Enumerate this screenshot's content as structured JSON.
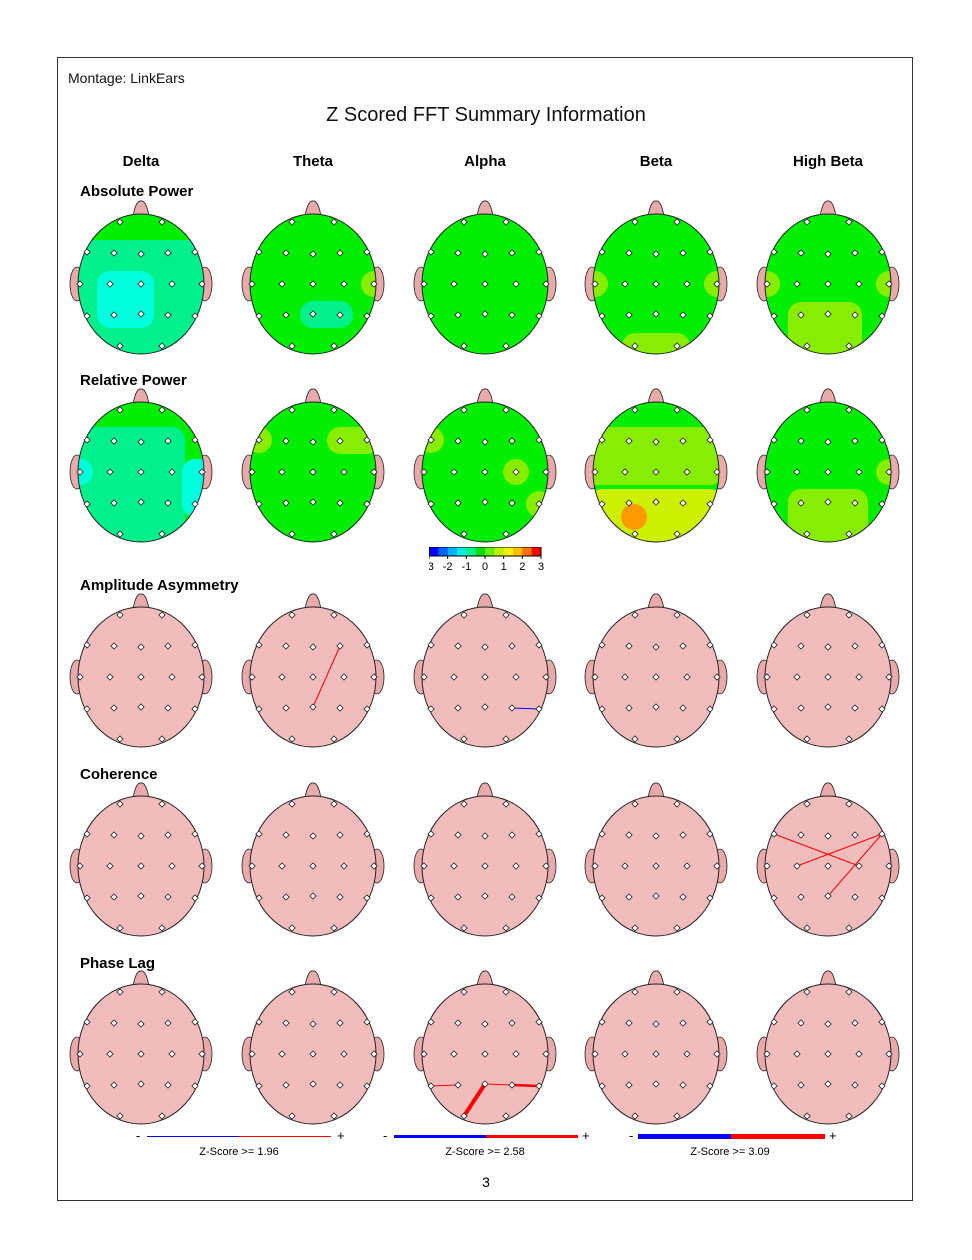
{
  "montage_label": "Montage:  LinkEars",
  "title": "Z Scored FFT Summary Information",
  "columns": [
    "Delta",
    "Theta",
    "Alpha",
    "Beta",
    "High Beta"
  ],
  "rows": [
    "Absolute Power",
    "Relative Power",
    "Amplitude Asymmetry",
    "Coherence",
    "Phase Lag"
  ],
  "colors": {
    "head_fill": "#f2bcbc",
    "ear_fill": "#e8aaaa",
    "z0": "#00ee00",
    "zneg1": "#00f08c",
    "zneg15": "#00ffdd",
    "zpos1": "#88ee00",
    "zpos15": "#ccf000",
    "zpos2": "#ff9900",
    "positive_line": "#ff0000",
    "negative_line": "#0000ff"
  },
  "power_maps": [
    [
      {
        "base": "z0",
        "regions": [
          {
            "electrodes": [
              "F3",
              "Fz",
              "F4",
              "T3",
              "C3",
              "Cz",
              "C4",
              "T4",
              "T5",
              "P3",
              "Pz",
              "P4",
              "T6",
              "O1",
              "O2"
            ],
            "color": "zneg1"
          },
          {
            "electrodes": [
              "C3",
              "Cz",
              "P3",
              "Pz"
            ],
            "color": "zneg15"
          }
        ]
      },
      {
        "base": "z0",
        "regions": [
          {
            "electrodes": [
              "Pz",
              "P4"
            ],
            "color": "zneg1"
          },
          {
            "electrodes": [
              "T4"
            ],
            "color": "zpos1"
          }
        ]
      },
      {
        "base": "z0",
        "regions": []
      },
      {
        "base": "z0",
        "regions": [
          {
            "electrodes": [
              "T3"
            ],
            "color": "zpos1"
          },
          {
            "electrodes": [
              "T4"
            ],
            "color": "zpos1"
          },
          {
            "electrodes": [
              "O1",
              "O2"
            ],
            "color": "zpos1"
          }
        ]
      },
      {
        "base": "z0",
        "regions": [
          {
            "electrodes": [
              "T3"
            ],
            "color": "zpos1"
          },
          {
            "electrodes": [
              "T4"
            ],
            "color": "zpos1"
          },
          {
            "electrodes": [
              "O1",
              "O2",
              "P3"
            ],
            "color": "zpos1"
          }
        ]
      }
    ],
    [
      {
        "base": "z0",
        "regions": [
          {
            "electrodes": [
              "T3",
              "C3",
              "Cz",
              "T5",
              "P3",
              "Pz",
              "O1",
              "O2",
              "F7",
              "C4",
              "P4"
            ],
            "color": "zneg1"
          },
          {
            "electrodes": [
              "T3"
            ],
            "color": "zneg15"
          },
          {
            "electrodes": [
              "T6",
              "T4"
            ],
            "color": "zneg15"
          }
        ]
      },
      {
        "base": "z0",
        "regions": [
          {
            "electrodes": [
              "F4",
              "F8"
            ],
            "color": "zpos1"
          },
          {
            "electrodes": [
              "F7"
            ],
            "color": "zpos1"
          }
        ]
      },
      {
        "base": "z0",
        "regions": [
          {
            "electrodes": [
              "F7"
            ],
            "color": "zpos1"
          },
          {
            "electrodes": [
              "C4"
            ],
            "color": "zpos1"
          },
          {
            "electrodes": [
              "T6"
            ],
            "color": "zpos1"
          }
        ]
      },
      {
        "base": "z0",
        "regions": [
          {
            "electrodes": [
              "T3",
              "C3",
              "Cz",
              "C4",
              "F4",
              "F8"
            ],
            "color": "zpos1"
          },
          {
            "electrodes": [
              "T5",
              "P3",
              "Pz",
              "P4",
              "O1",
              "O2",
              "T6"
            ],
            "color": "zpos15"
          },
          {
            "electrodes": [
              "P3O1"
            ],
            "color": "zpos2"
          }
        ]
      },
      {
        "base": "z0",
        "regions": [
          {
            "electrodes": [
              "P3",
              "Pz",
              "P4",
              "O1",
              "O2"
            ],
            "color": "zpos1"
          },
          {
            "electrodes": [
              "T4"
            ],
            "color": "zpos1"
          }
        ]
      }
    ]
  ],
  "connection_maps": [
    [
      [],
      [
        {
          "from": "Pz",
          "to": "F4",
          "sign": "positive",
          "threshold": 1.96
        }
      ],
      [
        {
          "from": "P4",
          "to": "T6",
          "sign": "negative",
          "threshold": 1.96
        }
      ],
      [],
      []
    ],
    [
      [],
      [],
      [],
      [],
      [
        {
          "from": "F7",
          "to": "C4",
          "sign": "positive",
          "threshold": 1.96
        },
        {
          "from": "C3",
          "to": "F8",
          "sign": "positive",
          "threshold": 1.96
        },
        {
          "from": "Pz",
          "to": "F8",
          "sign": "positive",
          "threshold": 1.96
        }
      ]
    ],
    [
      [],
      [],
      [
        {
          "from": "T5",
          "to": "P3",
          "sign": "positive",
          "threshold": 1.96
        },
        {
          "from": "Pz",
          "to": "O1",
          "sign": "positive",
          "threshold": 3.09
        },
        {
          "from": "Pz",
          "to": "P4",
          "sign": "positive",
          "threshold": 1.96
        },
        {
          "from": "P4",
          "to": "T6",
          "sign": "positive",
          "threshold": 2.58
        }
      ],
      [],
      []
    ]
  ],
  "colorbar": {
    "ticks": [
      "-3",
      "-2",
      "-1",
      "0",
      "1",
      "2",
      "3"
    ],
    "colors": [
      "#0000ff",
      "#0060ff",
      "#00b0ff",
      "#00f0e0",
      "#00f090",
      "#00e000",
      "#60f000",
      "#c0f000",
      "#f0f000",
      "#ffc000",
      "#ff7000",
      "#ff0000"
    ]
  },
  "legend": [
    {
      "minus": "-",
      "plus": "+",
      "label": "Z-Score >= 1.96"
    },
    {
      "minus": "-",
      "plus": "+",
      "label": "Z-Score >= 2.58"
    },
    {
      "minus": "-",
      "plus": "+",
      "label": "Z-Score >= 3.09"
    }
  ],
  "page_number": "3"
}
